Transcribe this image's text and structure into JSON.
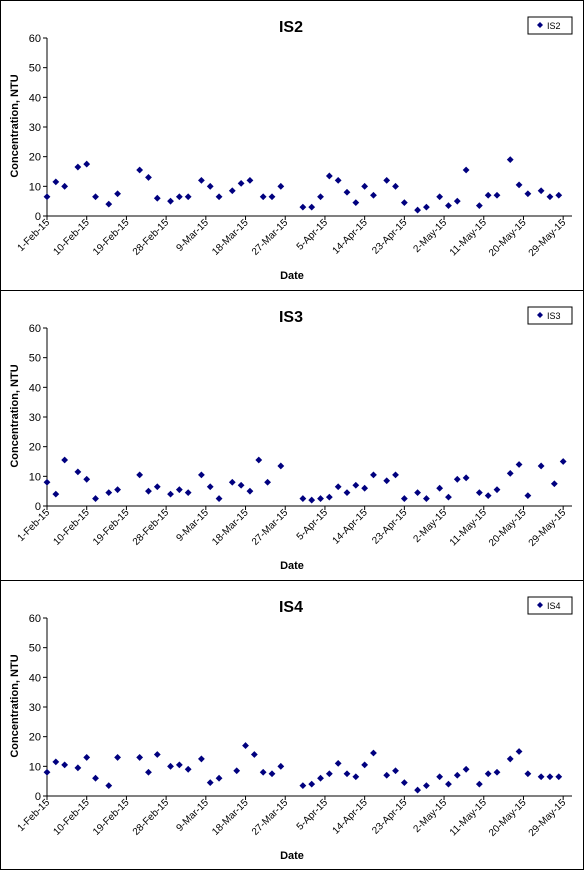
{
  "chart_data": [
    {
      "type": "scatter",
      "title": "IS2",
      "xlabel": "Date",
      "ylabel": "Concentration, NTU",
      "legend": {
        "entries": [
          "IS2"
        ],
        "position": "top-right"
      },
      "ylim": [
        0,
        60
      ],
      "yticks": [
        0,
        10,
        20,
        30,
        40,
        50,
        60
      ],
      "xlim": [
        "2015-02-01",
        "2015-05-31"
      ],
      "xticks": [
        "1-Feb-15",
        "10-Feb-15",
        "19-Feb-15",
        "28-Feb-15",
        "9-Mar-15",
        "18-Mar-15",
        "27-Mar-15",
        "5-Apr-15",
        "14-Apr-15",
        "23-Apr-15",
        "2-May-15",
        "11-May-15",
        "20-May-15",
        "29-May-15"
      ],
      "grid": false,
      "marker": "diamond",
      "color": "#00007f",
      "series": [
        {
          "name": "IS2",
          "x": [
            "2015-02-01",
            "2015-02-03",
            "2015-02-05",
            "2015-02-08",
            "2015-02-10",
            "2015-02-12",
            "2015-02-15",
            "2015-02-17",
            "2015-02-22",
            "2015-02-24",
            "2015-02-26",
            "2015-03-01",
            "2015-03-03",
            "2015-03-05",
            "2015-03-08",
            "2015-03-10",
            "2015-03-12",
            "2015-03-15",
            "2015-03-17",
            "2015-03-19",
            "2015-03-22",
            "2015-03-24",
            "2015-03-26",
            "2015-03-31",
            "2015-04-02",
            "2015-04-04",
            "2015-04-06",
            "2015-04-08",
            "2015-04-10",
            "2015-04-12",
            "2015-04-14",
            "2015-04-16",
            "2015-04-19",
            "2015-04-21",
            "2015-04-23",
            "2015-04-26",
            "2015-04-28",
            "2015-05-01",
            "2015-05-03",
            "2015-05-05",
            "2015-05-07",
            "2015-05-10",
            "2015-05-12",
            "2015-05-14",
            "2015-05-17",
            "2015-05-19",
            "2015-05-21",
            "2015-05-24",
            "2015-05-26",
            "2015-05-28"
          ],
          "y": [
            6.5,
            11.5,
            10,
            16.5,
            17.5,
            6.5,
            4,
            7.5,
            15.5,
            13,
            6,
            5,
            6.5,
            6.5,
            12,
            10,
            6.5,
            8.5,
            11,
            12,
            6.5,
            6.5,
            10,
            3,
            3,
            6.5,
            13.5,
            12,
            8,
            4.5,
            10,
            7,
            12,
            10,
            4.5,
            2,
            3,
            6.5,
            3.5,
            5,
            15.5,
            3.5,
            7,
            7,
            19,
            10.5,
            7.5,
            8.5,
            6.5,
            7
          ]
        }
      ]
    },
    {
      "type": "scatter",
      "title": "IS3",
      "xlabel": "Date",
      "ylabel": "Concentration, NTU",
      "legend": {
        "entries": [
          "IS3"
        ],
        "position": "top-right"
      },
      "ylim": [
        0,
        60
      ],
      "yticks": [
        0,
        10,
        20,
        30,
        40,
        50,
        60
      ],
      "xlim": [
        "2015-02-01",
        "2015-05-31"
      ],
      "xticks": [
        "1-Feb-15",
        "10-Feb-15",
        "19-Feb-15",
        "28-Feb-15",
        "9-Mar-15",
        "18-Mar-15",
        "27-Mar-15",
        "5-Apr-15",
        "14-Apr-15",
        "23-Apr-15",
        "2-May-15",
        "11-May-15",
        "20-May-15",
        "29-May-15"
      ],
      "grid": false,
      "marker": "diamond",
      "color": "#00007f",
      "series": [
        {
          "name": "IS3",
          "x": [
            "2015-02-01",
            "2015-02-03",
            "2015-02-05",
            "2015-02-08",
            "2015-02-10",
            "2015-02-12",
            "2015-02-15",
            "2015-02-17",
            "2015-02-22",
            "2015-02-24",
            "2015-02-26",
            "2015-03-01",
            "2015-03-03",
            "2015-03-05",
            "2015-03-08",
            "2015-03-10",
            "2015-03-12",
            "2015-03-15",
            "2015-03-17",
            "2015-03-19",
            "2015-03-21",
            "2015-03-23",
            "2015-03-26",
            "2015-03-31",
            "2015-04-02",
            "2015-04-04",
            "2015-04-06",
            "2015-04-08",
            "2015-04-10",
            "2015-04-12",
            "2015-04-14",
            "2015-04-16",
            "2015-04-19",
            "2015-04-21",
            "2015-04-23",
            "2015-04-26",
            "2015-04-28",
            "2015-05-01",
            "2015-05-03",
            "2015-05-05",
            "2015-05-07",
            "2015-05-10",
            "2015-05-12",
            "2015-05-14",
            "2015-05-17",
            "2015-05-19",
            "2015-05-21",
            "2015-05-24",
            "2015-05-27",
            "2015-05-29"
          ],
          "y": [
            8,
            4,
            15.5,
            11.5,
            9,
            2.5,
            4.5,
            5.5,
            10.5,
            5,
            6.5,
            4,
            5.5,
            4.5,
            10.5,
            6.5,
            2.5,
            8,
            7,
            5,
            15.5,
            8,
            13.5,
            2.5,
            2,
            2.5,
            3,
            6.5,
            4.5,
            7,
            6,
            10.5,
            8.5,
            10.5,
            2.5,
            4.5,
            2.5,
            6,
            3,
            9,
            9.5,
            4.5,
            3.5,
            5.5,
            11,
            14,
            3.5,
            13.5,
            7.5,
            15
          ]
        }
      ]
    },
    {
      "type": "scatter",
      "title": "IS4",
      "xlabel": "Date",
      "ylabel": "Concentration, NTU",
      "legend": {
        "entries": [
          "IS4"
        ],
        "position": "top-right"
      },
      "ylim": [
        0,
        60
      ],
      "yticks": [
        0,
        10,
        20,
        30,
        40,
        50,
        60
      ],
      "xlim": [
        "2015-02-01",
        "2015-05-31"
      ],
      "xticks": [
        "1-Feb-15",
        "10-Feb-15",
        "19-Feb-15",
        "28-Feb-15",
        "9-Mar-15",
        "18-Mar-15",
        "27-Mar-15",
        "5-Apr-15",
        "14-Apr-15",
        "23-Apr-15",
        "2-May-15",
        "11-May-15",
        "20-May-15",
        "29-May-15"
      ],
      "grid": false,
      "marker": "diamond",
      "color": "#00007f",
      "series": [
        {
          "name": "IS4",
          "x": [
            "2015-02-01",
            "2015-02-03",
            "2015-02-05",
            "2015-02-08",
            "2015-02-10",
            "2015-02-12",
            "2015-02-15",
            "2015-02-17",
            "2015-02-22",
            "2015-02-24",
            "2015-02-26",
            "2015-03-01",
            "2015-03-03",
            "2015-03-05",
            "2015-03-08",
            "2015-03-10",
            "2015-03-12",
            "2015-03-16",
            "2015-03-18",
            "2015-03-20",
            "2015-03-22",
            "2015-03-24",
            "2015-03-26",
            "2015-03-31",
            "2015-04-02",
            "2015-04-04",
            "2015-04-06",
            "2015-04-08",
            "2015-04-10",
            "2015-04-12",
            "2015-04-14",
            "2015-04-16",
            "2015-04-19",
            "2015-04-21",
            "2015-04-23",
            "2015-04-26",
            "2015-04-28",
            "2015-05-01",
            "2015-05-03",
            "2015-05-05",
            "2015-05-07",
            "2015-05-10",
            "2015-05-12",
            "2015-05-14",
            "2015-05-17",
            "2015-05-19",
            "2015-05-21",
            "2015-05-24",
            "2015-05-26",
            "2015-05-28"
          ],
          "y": [
            8,
            11.5,
            10.5,
            9.5,
            13,
            6,
            3.5,
            13,
            13,
            8,
            14,
            10,
            10.5,
            9,
            12.5,
            4.5,
            6,
            8.5,
            17,
            14,
            8,
            7.5,
            10,
            3.5,
            4,
            6,
            7.5,
            11,
            7.5,
            6.5,
            10.5,
            14.5,
            7,
            8.5,
            4.5,
            2,
            3.5,
            6.5,
            4,
            7,
            9,
            4,
            7.5,
            8,
            12.5,
            15,
            7.5,
            6.5,
            6.5,
            6.5
          ]
        }
      ]
    }
  ]
}
